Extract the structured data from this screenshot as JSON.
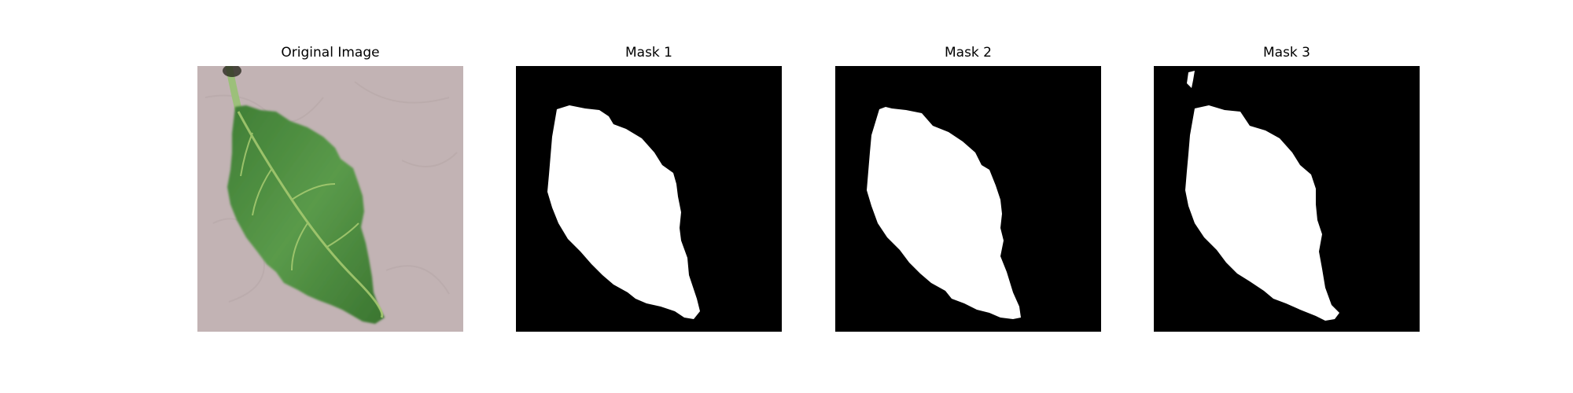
{
  "figure": {
    "panels": [
      {
        "title": "Original Image",
        "kind": "photo",
        "subject": "leaf-photo"
      },
      {
        "title": "Mask 1",
        "kind": "mask"
      },
      {
        "title": "Mask 2",
        "kind": "mask"
      },
      {
        "title": "Mask 3",
        "kind": "mask"
      }
    ]
  },
  "colors": {
    "background": "#c4b6b6",
    "leaf": "#4a8a3e",
    "leaf_dark": "#2f6a2b",
    "vein": "#a6c86a",
    "mask_bg": "#000000",
    "mask_fg": "#ffffff"
  }
}
